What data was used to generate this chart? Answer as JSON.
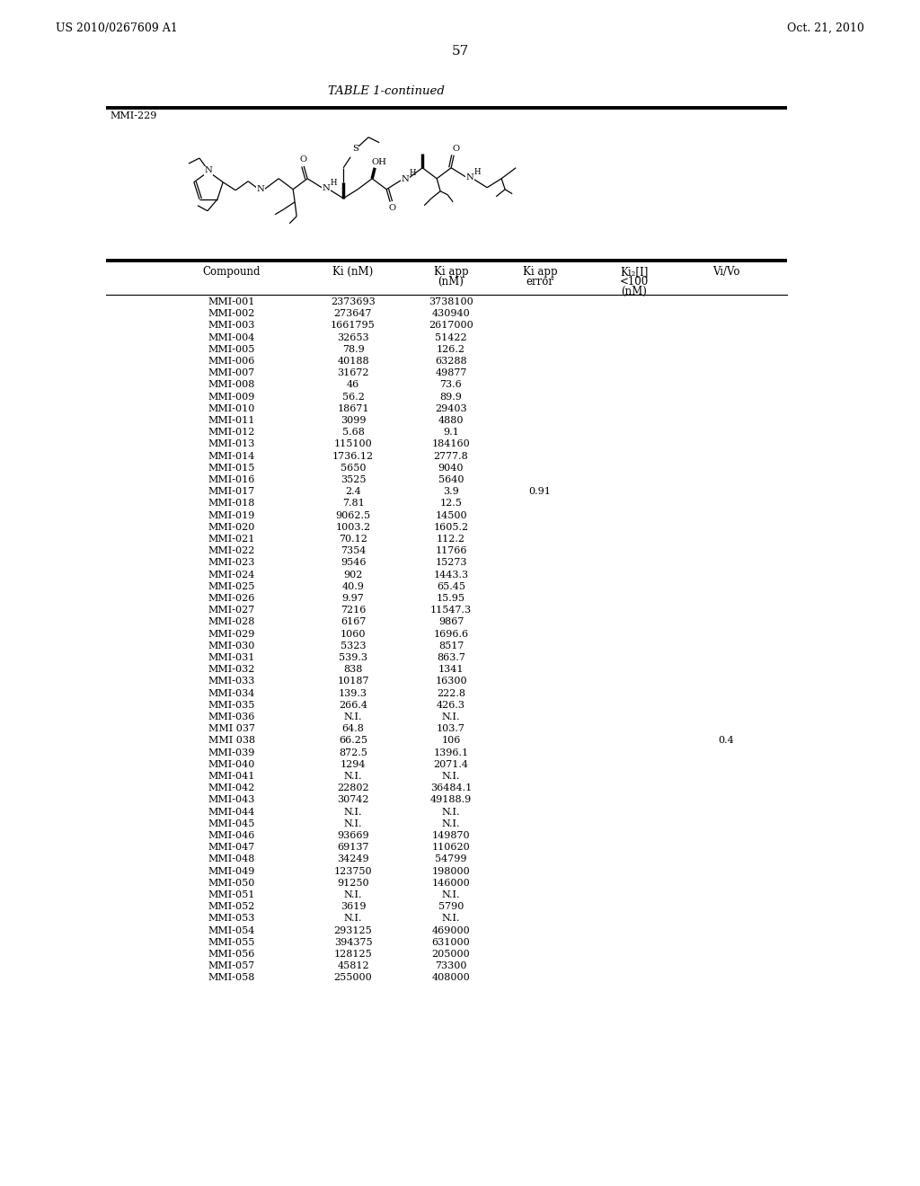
{
  "page_header_left": "US 2010/0267609 A1",
  "page_header_right": "Oct. 21, 2010",
  "page_number": "57",
  "table_title": "TABLE 1-continued",
  "compound_label": "MMI-229",
  "table_data": [
    [
      "MMI-001",
      "2373693",
      "3738100",
      "",
      "",
      ""
    ],
    [
      "MMI-002",
      "273647",
      "430940",
      "",
      "",
      ""
    ],
    [
      "MMI-003",
      "1661795",
      "2617000",
      "",
      "",
      ""
    ],
    [
      "MMI-004",
      "32653",
      "51422",
      "",
      "",
      ""
    ],
    [
      "MMI-005",
      "78.9",
      "126.2",
      "",
      "",
      ""
    ],
    [
      "MMI-006",
      "40188",
      "63288",
      "",
      "",
      ""
    ],
    [
      "MMI-007",
      "31672",
      "49877",
      "",
      "",
      ""
    ],
    [
      "MMI-008",
      "46",
      "73.6",
      "",
      "",
      ""
    ],
    [
      "MMI-009",
      "56.2",
      "89.9",
      "",
      "",
      ""
    ],
    [
      "MMI-010",
      "18671",
      "29403",
      "",
      "",
      ""
    ],
    [
      "MMI-011",
      "3099",
      "4880",
      "",
      "",
      ""
    ],
    [
      "MMI-012",
      "5.68",
      "9.1",
      "",
      "",
      ""
    ],
    [
      "MMI-013",
      "115100",
      "184160",
      "",
      "",
      ""
    ],
    [
      "MMI-014",
      "1736.12",
      "2777.8",
      "",
      "",
      ""
    ],
    [
      "MMI-015",
      "5650",
      "9040",
      "",
      "",
      ""
    ],
    [
      "MMI-016",
      "3525",
      "5640",
      "",
      "",
      ""
    ],
    [
      "MMI-017",
      "2.4",
      "3.9",
      "0.91",
      "",
      ""
    ],
    [
      "MMI-018",
      "7.81",
      "12.5",
      "",
      "",
      ""
    ],
    [
      "MMI-019",
      "9062.5",
      "14500",
      "",
      "",
      ""
    ],
    [
      "MMI-020",
      "1003.2",
      "1605.2",
      "",
      "",
      ""
    ],
    [
      "MMI-021",
      "70.12",
      "112.2",
      "",
      "",
      ""
    ],
    [
      "MMI-022",
      "7354",
      "11766",
      "",
      "",
      ""
    ],
    [
      "MMI-023",
      "9546",
      "15273",
      "",
      "",
      ""
    ],
    [
      "MMI-024",
      "902",
      "1443.3",
      "",
      "",
      ""
    ],
    [
      "MMI-025",
      "40.9",
      "65.45",
      "",
      "",
      ""
    ],
    [
      "MMI-026",
      "9.97",
      "15.95",
      "",
      "",
      ""
    ],
    [
      "MMI-027",
      "7216",
      "11547.3",
      "",
      "",
      ""
    ],
    [
      "MMI-028",
      "6167",
      "9867",
      "",
      "",
      ""
    ],
    [
      "MMI-029",
      "1060",
      "1696.6",
      "",
      "",
      ""
    ],
    [
      "MMI-030",
      "5323",
      "8517",
      "",
      "",
      ""
    ],
    [
      "MMI-031",
      "539.3",
      "863.7",
      "",
      "",
      ""
    ],
    [
      "MMI-032",
      "838",
      "1341",
      "",
      "",
      ""
    ],
    [
      "MMI-033",
      "10187",
      "16300",
      "",
      "",
      ""
    ],
    [
      "MMI-034",
      "139.3",
      "222.8",
      "",
      "",
      ""
    ],
    [
      "MMI-035",
      "266.4",
      "426.3",
      "",
      "",
      ""
    ],
    [
      "MMI-036",
      "N.I.",
      "N.I.",
      "",
      "",
      ""
    ],
    [
      "MMI 037",
      "64.8",
      "103.7",
      "",
      "",
      ""
    ],
    [
      "MMI 038",
      "66.25",
      "106",
      "",
      "",
      "0.4"
    ],
    [
      "MMI-039",
      "872.5",
      "1396.1",
      "",
      "",
      ""
    ],
    [
      "MMI-040",
      "1294",
      "2071.4",
      "",
      "",
      ""
    ],
    [
      "MMI-041",
      "N.I.",
      "N.I.",
      "",
      "",
      ""
    ],
    [
      "MMI-042",
      "22802",
      "36484.1",
      "",
      "",
      ""
    ],
    [
      "MMI-043",
      "30742",
      "49188.9",
      "",
      "",
      ""
    ],
    [
      "MMI-044",
      "N.I.",
      "N.I.",
      "",
      "",
      ""
    ],
    [
      "MMI-045",
      "N.I.",
      "N.I.",
      "",
      "",
      ""
    ],
    [
      "MMI-046",
      "93669",
      "149870",
      "",
      "",
      ""
    ],
    [
      "MMI-047",
      "69137",
      "110620",
      "",
      "",
      ""
    ],
    [
      "MMI-048",
      "34249",
      "54799",
      "",
      "",
      ""
    ],
    [
      "MMI-049",
      "123750",
      "198000",
      "",
      "",
      ""
    ],
    [
      "MMI-050",
      "91250",
      "146000",
      "",
      "",
      ""
    ],
    [
      "MMI-051",
      "N.I.",
      "N.I.",
      "",
      "",
      ""
    ],
    [
      "MMI-052",
      "3619",
      "5790",
      "",
      "",
      ""
    ],
    [
      "MMI-053",
      "N.I.",
      "N.I.",
      "",
      "",
      ""
    ],
    [
      "MMI-054",
      "293125",
      "469000",
      "",
      "",
      ""
    ],
    [
      "MMI-055",
      "394375",
      "631000",
      "",
      "",
      ""
    ],
    [
      "MMI-056",
      "128125",
      "205000",
      "",
      "",
      ""
    ],
    [
      "MMI-057",
      "45812",
      "73300",
      "",
      "",
      ""
    ],
    [
      "MMI-058",
      "255000",
      "408000",
      "",
      "",
      ""
    ]
  ],
  "bg_color": "#ffffff",
  "text_color": "#000000",
  "font_size_body": 8.0,
  "font_size_header": 8.5,
  "font_size_title": 9.5,
  "font_size_page": 9.0
}
